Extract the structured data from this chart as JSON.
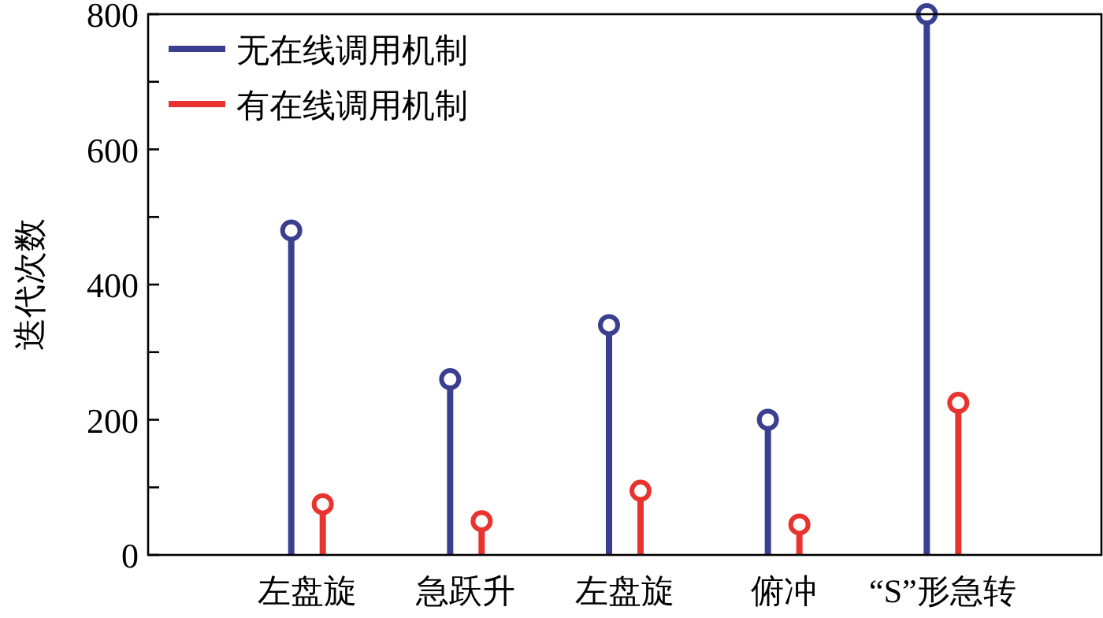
{
  "chart_data": {
    "type": "lollipop",
    "ylabel": "迭代次数",
    "categories": [
      "左盘旋",
      "急跃升",
      "左盘旋",
      "俯冲",
      "“S”形急转"
    ],
    "series": [
      {
        "name": "无在线调用机制",
        "color": "#3b3f8f",
        "values": [
          480,
          260,
          340,
          200,
          800
        ]
      },
      {
        "name": "有在线调用机制",
        "color": "#e8332f",
        "values": [
          75,
          50,
          95,
          45,
          225
        ]
      }
    ],
    "ylim": [
      0,
      800
    ],
    "yticks": [
      0,
      {
        "value": 100,
        "label": null
      },
      200,
      {
        "value": 300,
        "label": null
      },
      400,
      {
        "value": 500,
        "label": null
      },
      600,
      {
        "value": 700,
        "label": null
      },
      800
    ],
    "legend": "top left",
    "marker": "circle"
  }
}
